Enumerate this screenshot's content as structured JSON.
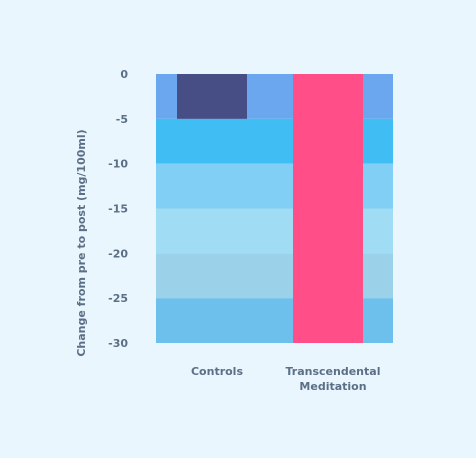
{
  "chart_data": {
    "type": "bar",
    "categories": [
      "Controls",
      "Transcendental Meditation"
    ],
    "category_lines": [
      [
        "Controls"
      ],
      [
        "Transcendental",
        "Meditation"
      ]
    ],
    "values": [
      -5,
      -30
    ],
    "ylabel": "Change from pre to post (mg/100ml)",
    "xlabel": "",
    "ylim": [
      -30,
      0
    ],
    "yticks": [
      0,
      -5,
      -10,
      -15,
      -20,
      -25,
      -30
    ],
    "bar_colors": [
      "#474e85",
      "#ff4e88"
    ],
    "background_bands": [
      {
        "from": 0,
        "to": -5,
        "color": "#6aa7ef"
      },
      {
        "from": -5,
        "to": -10,
        "color": "#40bdf3"
      },
      {
        "from": -10,
        "to": -15,
        "color": "#81cff4"
      },
      {
        "from": -15,
        "to": -20,
        "color": "#a0dcf4"
      },
      {
        "from": -20,
        "to": -25,
        "color": "#9bd1e9"
      },
      {
        "from": -25,
        "to": -30,
        "color": "#6dc0ec"
      }
    ],
    "grid": false,
    "legend": "none"
  }
}
